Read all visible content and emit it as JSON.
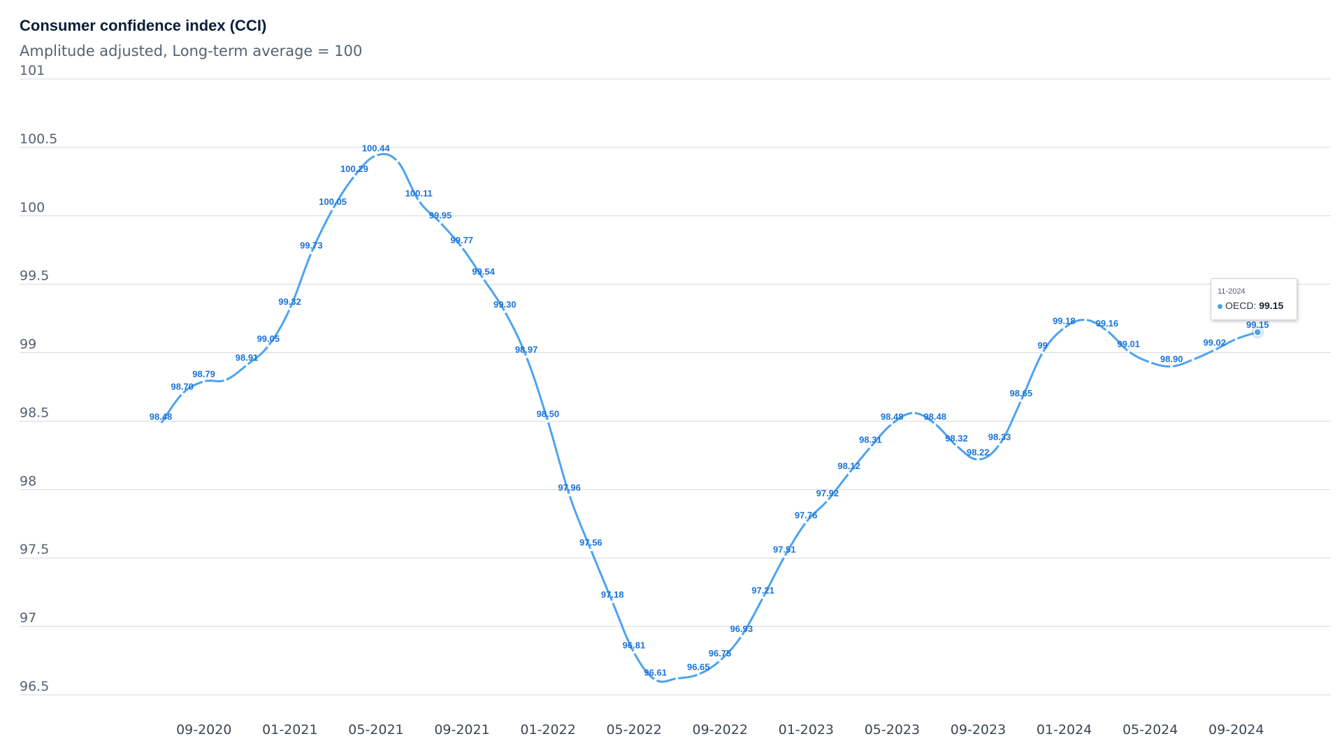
{
  "chart_data": {
    "type": "line",
    "title": "Consumer confidence index (CCI)",
    "subtitle": "Amplitude adjusted, Long-term average = 100",
    "xlabel": "",
    "ylabel": "",
    "ylim": [
      96.5,
      101
    ],
    "y_ticks": [
      "96.5",
      "97",
      "97.5",
      "98",
      "98.5",
      "99",
      "99.5",
      "100",
      "100.5",
      "101"
    ],
    "x_ticks": [
      "09-2020",
      "01-2021",
      "05-2021",
      "09-2021",
      "01-2022",
      "05-2022",
      "09-2022",
      "01-2023",
      "05-2023",
      "09-2023",
      "01-2024",
      "05-2024",
      "09-2024"
    ],
    "grid": true,
    "legend": "none",
    "line_color": "#4ca3ef",
    "label_color": "#1a73d9",
    "series": [
      {
        "name": "OECD",
        "x": [
          "08-2020",
          "09-2020",
          "10-2020",
          "11-2020",
          "12-2020",
          "01-2021",
          "02-2021",
          "03-2021",
          "04-2021",
          "05-2021",
          "06-2021",
          "07-2021",
          "08-2021",
          "09-2021",
          "10-2021",
          "11-2021",
          "12-2021",
          "01-2022",
          "02-2022",
          "03-2022",
          "04-2022",
          "05-2022",
          "06-2022",
          "07-2022",
          "08-2022",
          "09-2022",
          "10-2022",
          "11-2022",
          "12-2022",
          "01-2023",
          "02-2023",
          "03-2023",
          "04-2023",
          "05-2023",
          "06-2023",
          "07-2023",
          "08-2023",
          "09-2023",
          "10-2023",
          "11-2023",
          "12-2023",
          "01-2024",
          "02-2024",
          "03-2024",
          "04-2024",
          "05-2024",
          "06-2024",
          "07-2024",
          "08-2024",
          "09-2024",
          "10-2024",
          "11-2024"
        ],
        "values": [
          98.48,
          98.7,
          98.79,
          98.8,
          98.91,
          99.05,
          99.32,
          99.73,
          100.05,
          100.29,
          100.44,
          100.4,
          100.11,
          99.95,
          99.77,
          99.54,
          99.3,
          98.97,
          98.5,
          97.96,
          97.56,
          97.18,
          96.81,
          96.61,
          96.62,
          96.65,
          96.75,
          96.93,
          97.21,
          97.51,
          97.76,
          97.92,
          98.12,
          98.31,
          98.48,
          98.56,
          98.48,
          98.32,
          98.22,
          98.33,
          98.65,
          99.0,
          99.18,
          99.24,
          99.16,
          99.01,
          98.93,
          98.9,
          98.95,
          99.02,
          99.1,
          99.15
        ],
        "labels": [
          "98.48",
          "98.70",
          "98.79",
          "",
          "98.91",
          "99.05",
          "99.32",
          "99.73",
          "100.05",
          "100.29",
          "100.44",
          "",
          "100.11",
          "99.95",
          "99.77",
          "99.54",
          "99.30",
          "98.97",
          "98.50",
          "97.96",
          "97.56",
          "97.18",
          "96.81",
          "96.61",
          "",
          "96.65",
          "96.75",
          "96.93",
          "97.21",
          "97.51",
          "97.76",
          "97.92",
          "98.12",
          "98.31",
          "98.48",
          "",
          "98.48",
          "98.32",
          "98.22",
          "98.33",
          "98.65",
          "99",
          "99.18",
          "",
          "99.16",
          "99.01",
          "",
          "98.90",
          "",
          "99.02",
          "",
          "99.15"
        ]
      }
    ]
  },
  "tooltip": {
    "date": "11-2024",
    "series_name": "OECD:",
    "value": "99.15"
  }
}
